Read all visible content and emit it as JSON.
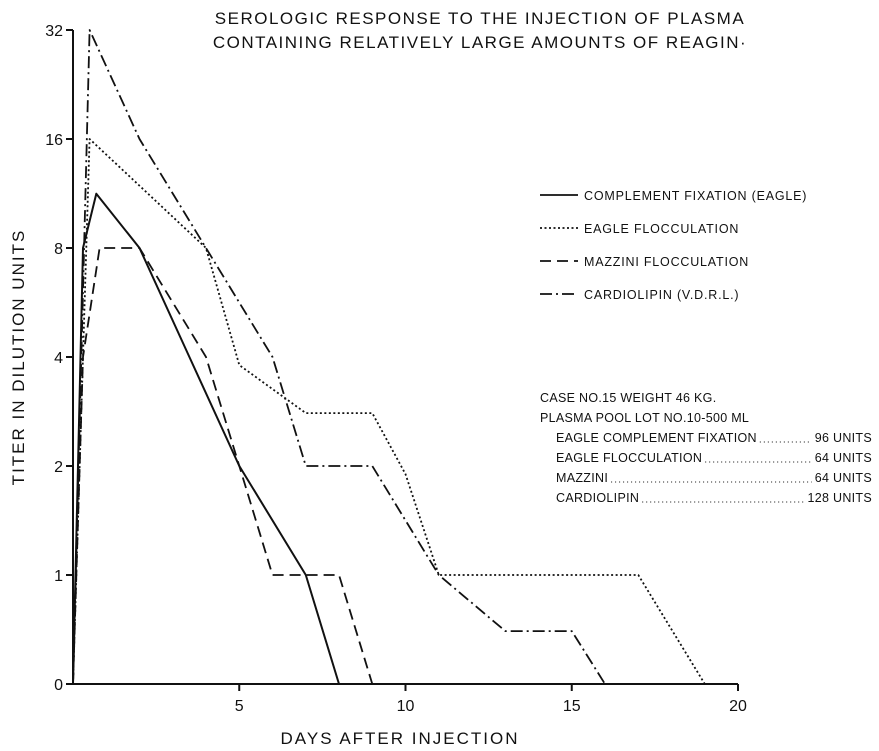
{
  "chart_data": {
    "type": "line",
    "title_lines": [
      "SEROLOGIC  RESPONSE  TO  THE  INJECTION  OF  PLASMA",
      "CONTAINING  RELATIVELY  LARGE  AMOUNTS  OF  REAGIN·"
    ],
    "xlabel": "DAYS   AFTER   INJECTION",
    "ylabel": "TITER IN DILUTION UNITS",
    "xlim": [
      0,
      20
    ],
    "x_ticks": [
      5,
      10,
      15,
      20
    ],
    "x_tick_labels": [
      "5",
      "10",
      "15",
      "20"
    ],
    "y_scale": "log2 titer (0 at baseline)",
    "y_ticks": [
      0,
      1,
      2,
      4,
      8,
      16,
      32
    ],
    "y_tick_labels": [
      "0",
      "1",
      "2",
      "4",
      "8",
      "16",
      "32"
    ],
    "grid": false,
    "legend_position": "right",
    "series": [
      {
        "name": "COMPLEMENT FIXATION (EAGLE)",
        "style": "solid",
        "points": [
          [
            0,
            0
          ],
          [
            0.3,
            8
          ],
          [
            0.7,
            11.3
          ],
          [
            2,
            8
          ],
          [
            3.5,
            4
          ],
          [
            5,
            2
          ],
          [
            7,
            1
          ],
          [
            8,
            0
          ]
        ]
      },
      {
        "name": "EAGLE FLOCCULATION",
        "style": "dotted",
        "points": [
          [
            0,
            0
          ],
          [
            0.5,
            16
          ],
          [
            4,
            8
          ],
          [
            5,
            3.8
          ],
          [
            7,
            2.8
          ],
          [
            9,
            2.8
          ],
          [
            10,
            1.9
          ],
          [
            11,
            1
          ],
          [
            17,
            1
          ],
          [
            19,
            0
          ]
        ]
      },
      {
        "name": "MAZZINI FLOCCULATION",
        "style": "dashed",
        "points": [
          [
            0,
            0
          ],
          [
            0.3,
            4
          ],
          [
            0.8,
            8
          ],
          [
            2,
            8
          ],
          [
            4,
            4
          ],
          [
            5,
            2
          ],
          [
            6,
            1
          ],
          [
            8,
            1
          ],
          [
            9,
            0
          ]
        ]
      },
      {
        "name": "CARDIOLIPIN (V.D.R.L.)",
        "style": "dashdot",
        "points": [
          [
            0,
            0
          ],
          [
            0.5,
            32
          ],
          [
            2,
            16
          ],
          [
            4,
            8
          ],
          [
            6,
            4
          ],
          [
            7,
            2
          ],
          [
            9,
            2
          ],
          [
            11,
            1
          ],
          [
            13,
            0.7
          ],
          [
            15,
            0.7
          ],
          [
            16,
            0
          ]
        ]
      }
    ],
    "annotation": {
      "lines": [
        "CASE NO.15   WEIGHT  46 KG.",
        "PLASMA POOL LOT NO.10-500 ML"
      ],
      "doses": [
        {
          "label": "EAGLE COMPLEMENT FIXATION",
          "value": "96 UNITS"
        },
        {
          "label": "EAGLE FLOCCULATION",
          "value": "64 UNITS"
        },
        {
          "label": "MAZZINI",
          "value": "64 UNITS"
        },
        {
          "label": "CARDIOLIPIN",
          "value": "128 UNITS"
        }
      ]
    }
  }
}
